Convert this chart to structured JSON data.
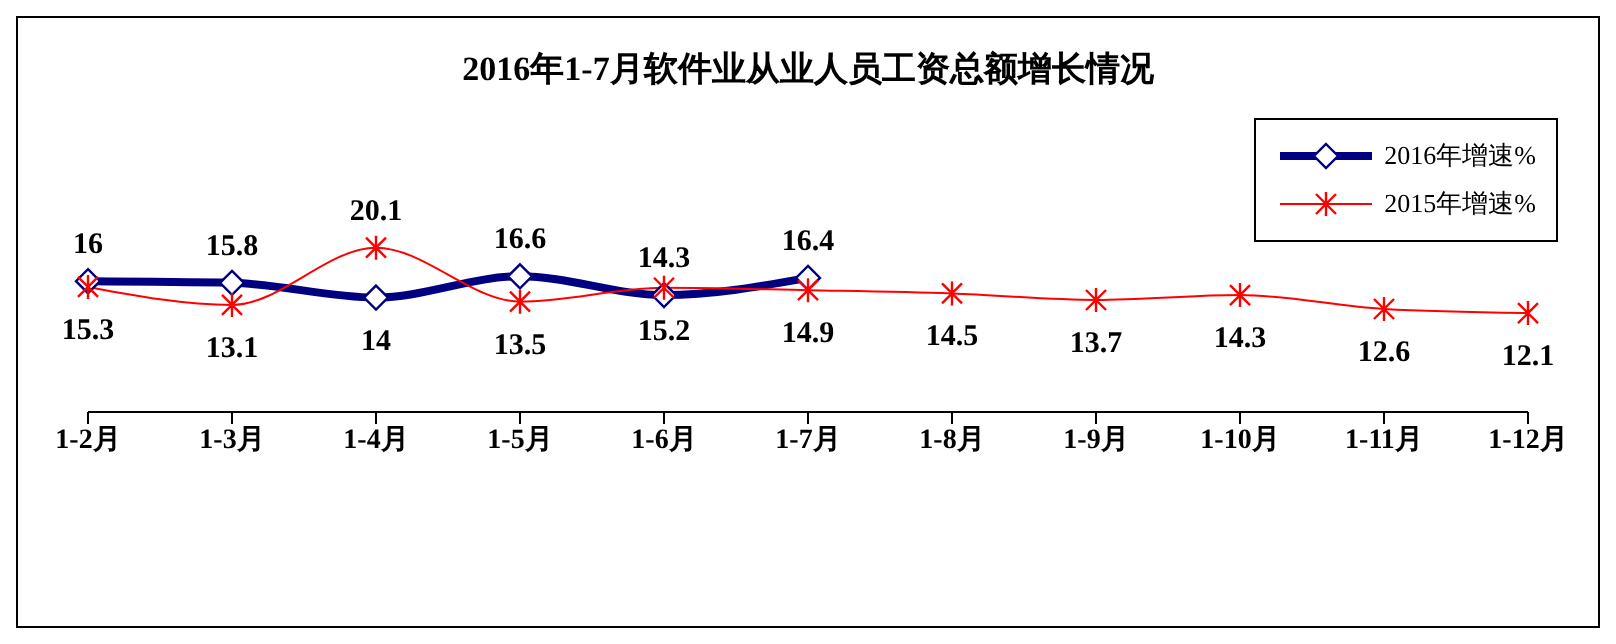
{
  "chart_data": {
    "type": "line",
    "title": "2016年1-7月软件业从业人员工资总额增长情况",
    "categories": [
      "1-2月",
      "1-3月",
      "1-4月",
      "1-5月",
      "1-6月",
      "1-7月",
      "1-8月",
      "1-9月",
      "1-10月",
      "1-11月",
      "1-12月"
    ],
    "series": [
      {
        "name": "2016年增速%",
        "color": "#000080",
        "marker": "diamond",
        "values": [
          16,
          15.8,
          14,
          16.6,
          14.3,
          16.4,
          null,
          null,
          null,
          null,
          null
        ]
      },
      {
        "name": "2015年增速%",
        "color": "#ff0000",
        "marker": "cross",
        "values": [
          15.3,
          13.1,
          20.1,
          13.5,
          15.2,
          14.9,
          14.5,
          13.7,
          14.3,
          12.6,
          12.1
        ]
      }
    ],
    "data_labels": true,
    "legend": "top right",
    "line_style": "solid"
  }
}
